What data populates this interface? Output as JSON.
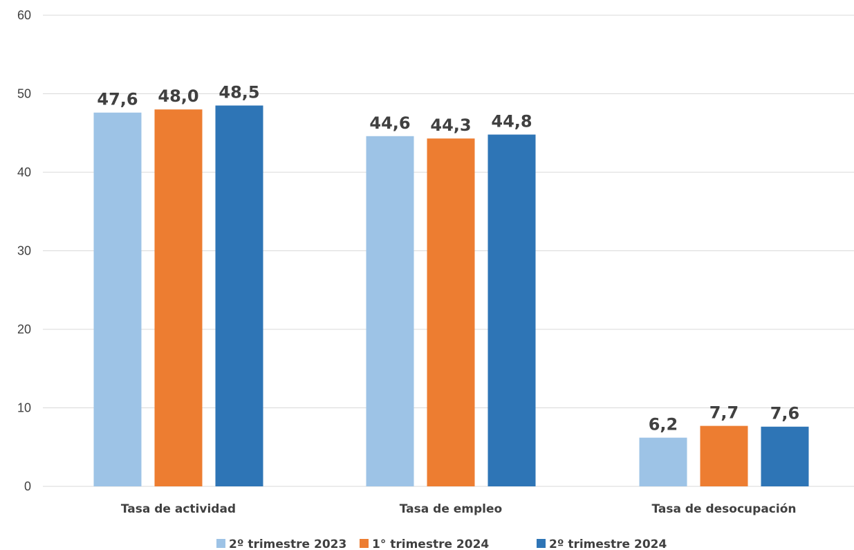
{
  "chart_data": {
    "type": "bar",
    "categories": [
      "Tasa de actividad",
      "Tasa de empleo",
      "Tasa de desocupación"
    ],
    "series": [
      {
        "name": "2º trimestre 2023",
        "values": [
          47.6,
          44.6,
          6.2
        ],
        "labels": [
          "47,6",
          "44,6",
          "6,2"
        ],
        "color": "#9dc3e6"
      },
      {
        "name": "1° trimestre 2024",
        "values": [
          48.0,
          44.3,
          7.7
        ],
        "labels": [
          "48,0",
          "44,3",
          "7,7"
        ],
        "color": "#ed7d31"
      },
      {
        "name": "2º trimestre 2024",
        "values": [
          48.5,
          44.8,
          7.6
        ],
        "labels": [
          "48,5",
          "44,8",
          "7,6"
        ],
        "color": "#2e75b6"
      }
    ],
    "ylim": [
      0,
      60
    ],
    "yticks": [
      0,
      10,
      20,
      30,
      40,
      50,
      60
    ],
    "grid": true,
    "legend_position": "bottom",
    "title": "",
    "xlabel": "",
    "ylabel": ""
  }
}
